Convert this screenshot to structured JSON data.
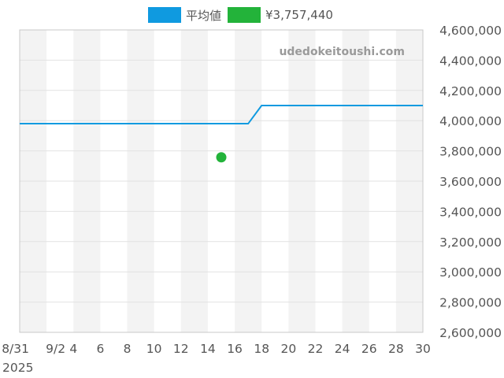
{
  "chart_data": {
    "type": "line",
    "legend": [
      {
        "label": "平均値",
        "color": "#0f9ae0"
      },
      {
        "label": "¥3,757,440",
        "color": "#23b33a"
      }
    ],
    "x_ticks": [
      "8/31",
      "9/2",
      "4",
      "6",
      "8",
      "10",
      "12",
      "14",
      "16",
      "18",
      "20",
      "22",
      "24",
      "26",
      "28",
      "30"
    ],
    "x_year_label": "2025",
    "x_range": [
      0,
      30
    ],
    "y_ticks": [
      "2,600,000",
      "2,800,000",
      "3,000,000",
      "3,200,000",
      "3,400,000",
      "3,600,000",
      "3,800,000",
      "4,000,000",
      "4,200,000",
      "4,400,000",
      "4,600,000"
    ],
    "ylim": [
      2600000,
      4600000
    ],
    "series": [
      {
        "name": "平均値",
        "style": "line",
        "color": "#0f9ae0",
        "points": [
          [
            0,
            3980000
          ],
          [
            17,
            3980000
          ],
          [
            18,
            4100000
          ],
          [
            30,
            4100000
          ]
        ]
      },
      {
        "name": "¥3,757,440",
        "style": "point",
        "color": "#23b33a",
        "points": [
          [
            15,
            3757440
          ]
        ]
      }
    ],
    "watermark": "udedokeitoushi.com",
    "grid": true,
    "legend_position": "top"
  }
}
